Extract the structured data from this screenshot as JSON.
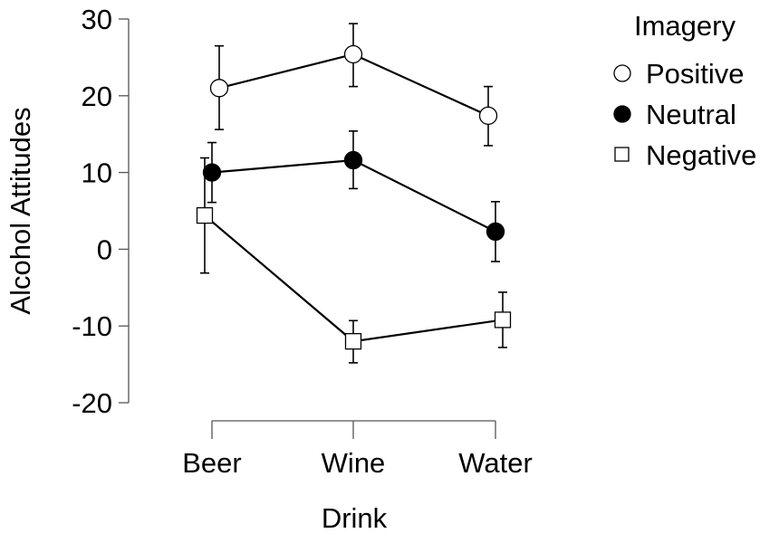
{
  "chart_data": {
    "type": "line",
    "categories": [
      "Beer",
      "Wine",
      "Water"
    ],
    "xlabel": "Drink",
    "ylabel": "Alcohol Attitudes",
    "ylim": [
      -20,
      30
    ],
    "yticks": [
      30,
      20,
      10,
      0,
      -10,
      -20
    ],
    "ytick_labels": [
      "30",
      "20",
      "10",
      "0",
      "-10",
      "-20"
    ],
    "legend_title": "Imagery",
    "legend_position": "top-right",
    "grid": false,
    "series": [
      {
        "name": "Positive",
        "marker": "open-circle",
        "values": [
          21.0,
          25.4,
          17.4
        ],
        "error_low": [
          15.6,
          21.2,
          13.5
        ],
        "error_high": [
          26.5,
          29.4,
          21.2
        ]
      },
      {
        "name": "Neutral",
        "marker": "filled-circle",
        "values": [
          10.0,
          11.6,
          2.3
        ],
        "error_low": [
          6.1,
          7.9,
          -1.6
        ],
        "error_high": [
          13.9,
          15.4,
          6.2
        ]
      },
      {
        "name": "Negative",
        "marker": "open-square",
        "values": [
          4.4,
          -12.0,
          -9.2
        ],
        "error_low": [
          -3.1,
          -14.8,
          -12.8
        ],
        "error_high": [
          11.9,
          -9.3,
          -5.6
        ]
      }
    ]
  }
}
